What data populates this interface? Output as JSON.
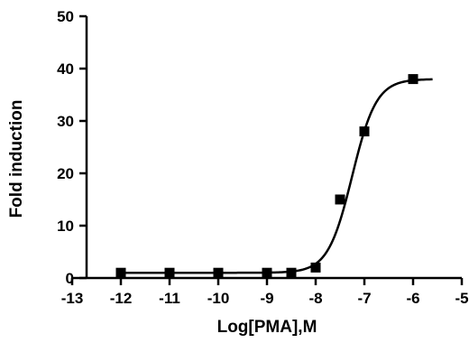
{
  "chart_data": {
    "type": "scatter",
    "title": "",
    "xlabel": "Log[PMA],M",
    "ylabel": "Fold induction",
    "xlim": [
      -13,
      -5
    ],
    "ylim": [
      0,
      50
    ],
    "x_ticks": [
      -13,
      -12,
      -11,
      -10,
      -9,
      -8,
      -7,
      -6,
      -5
    ],
    "y_ticks": [
      0,
      10,
      20,
      30,
      40,
      50
    ],
    "grid": false,
    "legend": "none",
    "series": [
      {
        "points": [
          {
            "x": -12,
            "y": 1
          },
          {
            "x": -11,
            "y": 1
          },
          {
            "x": -10,
            "y": 1
          },
          {
            "x": -9,
            "y": 1
          },
          {
            "x": -8.5,
            "y": 1
          },
          {
            "x": -8,
            "y": 2
          },
          {
            "x": -7.5,
            "y": 15
          },
          {
            "x": -7,
            "y": 28
          },
          {
            "x": -6,
            "y": 38
          }
        ],
        "marker": "square",
        "color": "#000000"
      }
    ],
    "fit_curve": {
      "model": "sigmoidal dose-response",
      "bottom": 1,
      "top": 38,
      "log_ec50": -7.25,
      "hill_slope": 1.75,
      "x_range": [
        -12,
        -5.6
      ]
    }
  }
}
